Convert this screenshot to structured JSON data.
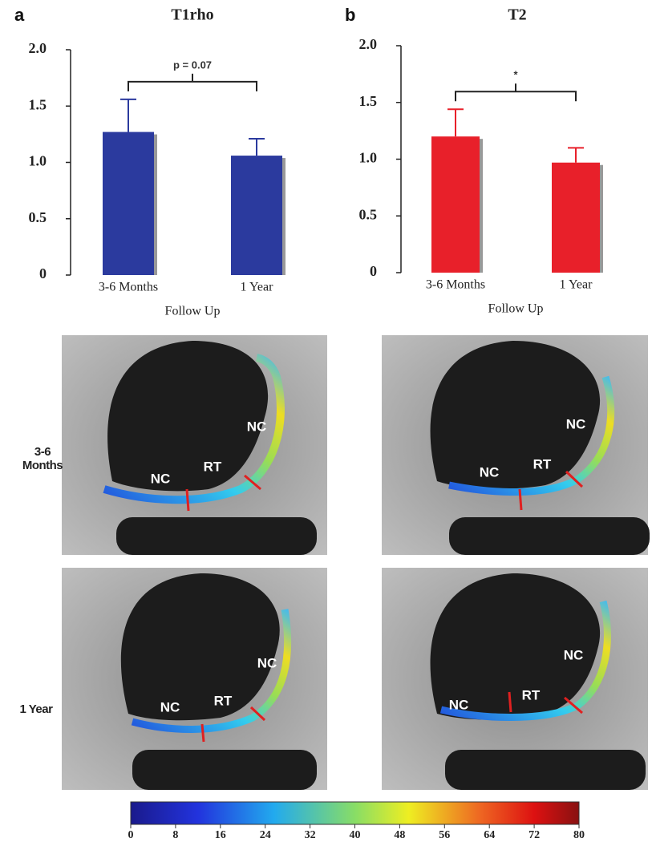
{
  "chart_data": [
    {
      "type": "bar",
      "panel": "a",
      "title": "T1rho",
      "categories": [
        "3-6 Months",
        "1 Year"
      ],
      "values": [
        1.27,
        1.06
      ],
      "errors": [
        0.29,
        0.15
      ],
      "color": "#2b3a9e",
      "xlabel": "Follow Up",
      "annotation": "p = 0.07",
      "ylim": [
        0,
        2.0
      ],
      "yticks": [
        0,
        0.5,
        {
          "value": 1.0,
          "label": "1.0"
        },
        1.5,
        {
          "value": 2.0,
          "label": "2.0"
        }
      ]
    },
    {
      "type": "bar",
      "panel": "b",
      "title": "T2",
      "categories": [
        "3-6 Months",
        "1 Year"
      ],
      "values": [
        1.2,
        0.97
      ],
      "errors": [
        0.24,
        0.13
      ],
      "color": "#e8202a",
      "xlabel": "Follow Up",
      "annotation": "*",
      "ylim": [
        0,
        2.0
      ],
      "yticks": [
        0,
        0.5,
        {
          "value": 1.0,
          "label": "1.0"
        },
        1.5,
        {
          "value": 2.0,
          "label": "2.0"
        }
      ]
    },
    {
      "type": "colorbar",
      "xlim": [
        0,
        80
      ],
      "xticks": [
        0,
        8,
        16,
        24,
        32,
        40,
        48,
        56,
        64,
        72,
        80
      ]
    }
  ],
  "images": {
    "row_labels": [
      "3-6 Months",
      "1 Year"
    ],
    "panels": [
      {
        "labels": [
          "NC",
          "RT",
          "NC"
        ]
      },
      {
        "labels": [
          "NC",
          "RT",
          "NC"
        ]
      },
      {
        "labels": [
          "NC",
          "RT",
          "NC"
        ]
      },
      {
        "labels": [
          "NC",
          "RT",
          "NC"
        ]
      }
    ]
  }
}
